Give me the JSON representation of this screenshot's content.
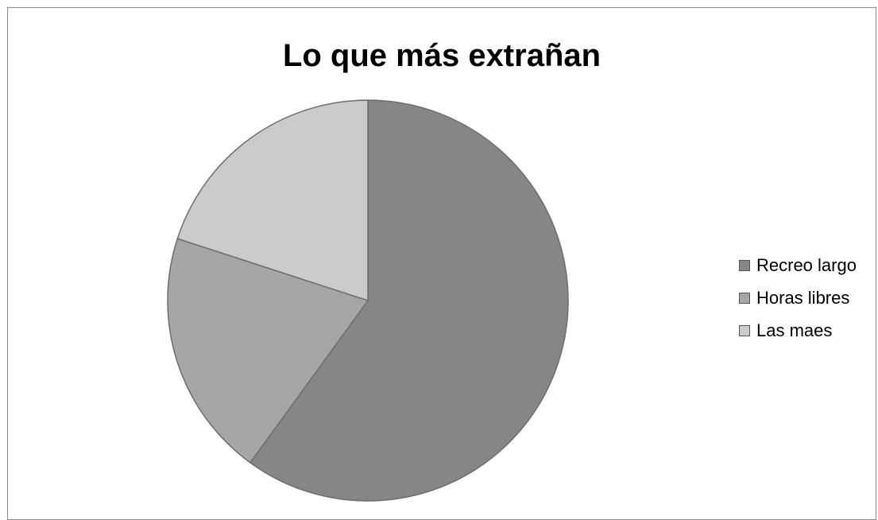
{
  "chart_data": {
    "type": "pie",
    "title": "Lo que más extrañan",
    "categories": [
      "Recreo largo",
      "Horas libres",
      "Las maes"
    ],
    "values": [
      60,
      20,
      20
    ],
    "colors": [
      "#868686",
      "#a6a6a6",
      "#cbcbcb"
    ],
    "start_angle_deg": 0,
    "direction": "clockwise",
    "legend_position": "right"
  }
}
